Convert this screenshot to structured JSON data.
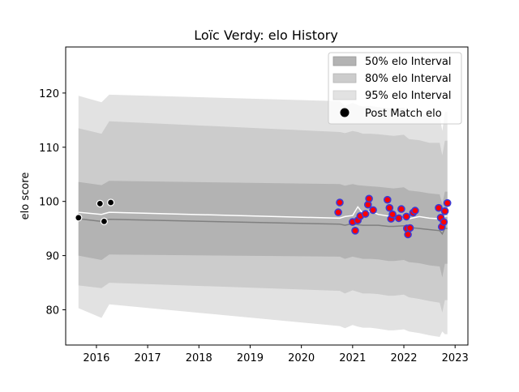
{
  "chart_data": {
    "type": "area",
    "title": "Loïc Verdy: elo History",
    "xlabel": "",
    "ylabel": "elo score",
    "xlim": [
      2015.4,
      2023.25
    ],
    "ylim": [
      73.5,
      128.5
    ],
    "x_ticks": [
      2016,
      2017,
      2018,
      2019,
      2020,
      2021,
      2022,
      2023
    ],
    "y_ticks": [
      80,
      90,
      100,
      110,
      120
    ],
    "grid": false,
    "legend_position": "top-right",
    "legend": [
      {
        "label": "50% elo Interval",
        "kind": "band",
        "color": "#b3b3b3"
      },
      {
        "label": "80% elo Interval",
        "kind": "band",
        "color": "#cccccc"
      },
      {
        "label": "95% elo Interval",
        "kind": "band",
        "color": "#e2e2e2"
      },
      {
        "label": "Post Match elo",
        "kind": "marker",
        "color": "#000000"
      }
    ],
    "colors": {
      "band95": "#e2e2e2",
      "band80": "#cccccc",
      "band50": "#b3b3b3",
      "median_line": "#808080",
      "mean_line": "#ffffff",
      "early_points": "#000000",
      "recent_points_fill": "#ff0000",
      "recent_points_edge": "#3b3bd6"
    },
    "bands": {
      "x": [
        2015.65,
        2016.1,
        2016.25,
        2020.75,
        2020.85,
        2021.0,
        2021.1,
        2021.2,
        2021.35,
        2021.5,
        2021.7,
        2021.8,
        2022.0,
        2022.1,
        2022.3,
        2022.5,
        2022.7,
        2022.75,
        2022.8,
        2022.85
      ],
      "p95_upper": [
        119.5,
        118.3,
        119.7,
        118.5,
        117.6,
        118.2,
        117.8,
        117.5,
        117.6,
        117.4,
        117.2,
        117.2,
        117.3,
        116.5,
        116.3,
        116.0,
        115.8,
        113.0,
        116.5,
        116.5
      ],
      "p80_upper": [
        113.5,
        112.5,
        114.8,
        112.8,
        112.6,
        113.0,
        112.8,
        112.5,
        112.5,
        112.4,
        112.2,
        112.1,
        112.3,
        111.5,
        111.3,
        110.8,
        110.8,
        108.5,
        111.2,
        111.2
      ],
      "p50_upper": [
        103.6,
        103.0,
        103.8,
        103.2,
        102.9,
        103.2,
        103.0,
        102.9,
        102.8,
        102.7,
        102.5,
        102.4,
        102.6,
        102.0,
        101.8,
        101.5,
        101.3,
        99.5,
        101.8,
        101.8
      ],
      "p50_lower": [
        90.0,
        89.2,
        90.2,
        89.8,
        89.4,
        89.8,
        89.6,
        89.4,
        89.4,
        89.3,
        89.0,
        89.0,
        89.2,
        88.8,
        88.6,
        88.2,
        88.0,
        86.0,
        88.5,
        88.5
      ],
      "p80_lower": [
        84.5,
        84.0,
        85.0,
        83.5,
        83.0,
        83.6,
        83.3,
        83.0,
        83.0,
        82.9,
        82.6,
        82.6,
        82.8,
        82.3,
        82.0,
        81.6,
        81.3,
        79.5,
        81.8,
        81.8
      ],
      "p95_lower": [
        80.3,
        78.5,
        81.0,
        77.0,
        76.6,
        77.2,
        76.9,
        76.7,
        76.7,
        76.5,
        76.2,
        76.2,
        76.4,
        76.0,
        75.7,
        75.3,
        75.0,
        76.0,
        75.5,
        75.5
      ],
      "median": [
        96.8,
        96.3,
        96.7,
        95.8,
        95.6,
        95.9,
        95.7,
        95.6,
        95.6,
        95.6,
        95.4,
        95.4,
        95.5,
        95.2,
        95.0,
        94.8,
        94.6,
        94.0,
        95.0,
        95.0
      ],
      "mean": [
        98.0,
        97.6,
        98.0,
        96.9,
        97.2,
        97.4,
        99.0,
        97.8,
        98.2,
        97.6,
        97.3,
        97.0,
        96.9,
        96.8,
        97.2,
        96.9,
        96.8,
        96.5,
        97.3,
        97.3
      ]
    },
    "early_points": [
      {
        "x": 2015.65,
        "y": 97.0
      },
      {
        "x": 2016.07,
        "y": 99.6
      },
      {
        "x": 2016.15,
        "y": 96.3
      },
      {
        "x": 2016.28,
        "y": 99.8
      }
    ],
    "recent_points": [
      {
        "x": 2020.72,
        "y": 98.0
      },
      {
        "x": 2020.75,
        "y": 99.8
      },
      {
        "x": 2021.0,
        "y": 96.2
      },
      {
        "x": 2021.05,
        "y": 94.6
      },
      {
        "x": 2021.1,
        "y": 96.5
      },
      {
        "x": 2021.15,
        "y": 97.3
      },
      {
        "x": 2021.25,
        "y": 97.7
      },
      {
        "x": 2021.3,
        "y": 99.4
      },
      {
        "x": 2021.32,
        "y": 100.5
      },
      {
        "x": 2021.4,
        "y": 98.4
      },
      {
        "x": 2021.68,
        "y": 100.3
      },
      {
        "x": 2021.72,
        "y": 98.8
      },
      {
        "x": 2021.75,
        "y": 96.8
      },
      {
        "x": 2021.78,
        "y": 97.6
      },
      {
        "x": 2021.9,
        "y": 96.9
      },
      {
        "x": 2021.95,
        "y": 98.6
      },
      {
        "x": 2022.05,
        "y": 97.2
      },
      {
        "x": 2022.06,
        "y": 95.0
      },
      {
        "x": 2022.08,
        "y": 93.9
      },
      {
        "x": 2022.12,
        "y": 95.1
      },
      {
        "x": 2022.18,
        "y": 97.9
      },
      {
        "x": 2022.22,
        "y": 98.3
      },
      {
        "x": 2022.68,
        "y": 98.8
      },
      {
        "x": 2022.72,
        "y": 97.0
      },
      {
        "x": 2022.74,
        "y": 95.3
      },
      {
        "x": 2022.78,
        "y": 96.2
      },
      {
        "x": 2022.8,
        "y": 98.2
      },
      {
        "x": 2022.85,
        "y": 99.7
      }
    ]
  }
}
